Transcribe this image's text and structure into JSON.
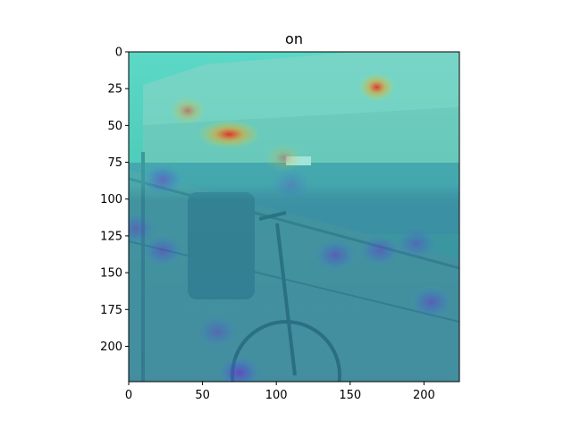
{
  "chart_data": {
    "type": "heatmap",
    "title": "on",
    "xlabel": "",
    "ylabel": "",
    "xlim": [
      0,
      224
    ],
    "ylim": [
      224,
      0
    ],
    "x_ticks": [
      0,
      50,
      100,
      150,
      200
    ],
    "y_ticks": [
      0,
      25,
      50,
      75,
      100,
      125,
      150,
      175,
      200
    ],
    "grid": false,
    "colormap": "jet",
    "overlay_on_photo": true,
    "base_color": "#3fc3b0",
    "hotspots": [
      {
        "x": 68,
        "y": 56,
        "intensity": 1.0
      },
      {
        "x": 168,
        "y": 24,
        "intensity": 0.95
      },
      {
        "x": 105,
        "y": 72,
        "intensity": 0.35
      },
      {
        "x": 40,
        "y": 40,
        "intensity": 0.55
      }
    ],
    "coldspots": [
      {
        "x": 23,
        "y": 87,
        "intensity": 0.6
      },
      {
        "x": 5,
        "y": 120,
        "intensity": 0.5
      },
      {
        "x": 23,
        "y": 135,
        "intensity": 0.55
      },
      {
        "x": 140,
        "y": 138,
        "intensity": 0.6
      },
      {
        "x": 170,
        "y": 135,
        "intensity": 0.55
      },
      {
        "x": 195,
        "y": 130,
        "intensity": 0.5
      },
      {
        "x": 205,
        "y": 170,
        "intensity": 0.6
      },
      {
        "x": 75,
        "y": 218,
        "intensity": 0.8
      },
      {
        "x": 60,
        "y": 190,
        "intensity": 0.45
      },
      {
        "x": 110,
        "y": 90,
        "intensity": 0.3
      }
    ]
  }
}
